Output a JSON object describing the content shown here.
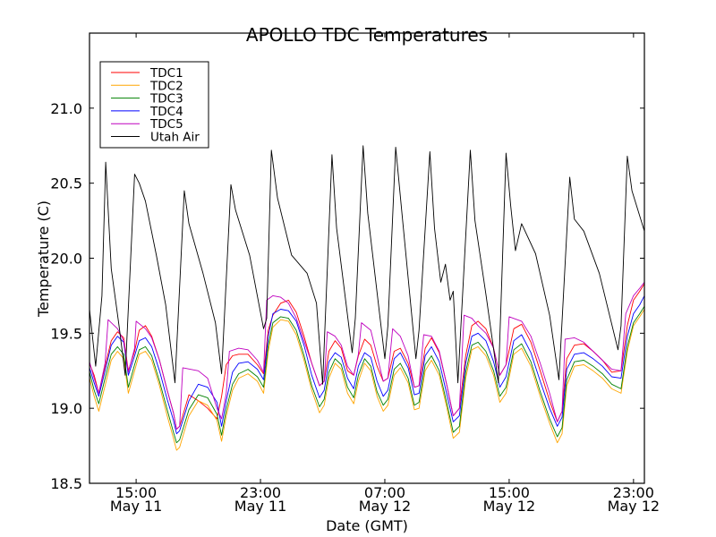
{
  "chart_data": {
    "type": "line",
    "title": "APOLLO TDC Temperatures",
    "xlabel": "Date (GMT)",
    "ylabel": "Temperature (C)",
    "x_units": "hours since 00:00 May 11 (GMT)",
    "xlim": [
      12.0,
      47.7
    ],
    "ylim": [
      18.5,
      21.5
    ],
    "grid": false,
    "legend_position": "top-left",
    "x_ticks": [
      {
        "value": 15,
        "label_time": "15:00",
        "label_date": "May 11"
      },
      {
        "value": 23,
        "label_time": "23:00",
        "label_date": "May 11"
      },
      {
        "value": 31,
        "label_time": "07:00",
        "label_date": "May 12"
      },
      {
        "value": 39,
        "label_time": "15:00",
        "label_date": "May 12"
      },
      {
        "value": 47,
        "label_time": "23:00",
        "label_date": "May 12"
      }
    ],
    "y_ticks": [
      {
        "value": 18.5,
        "label": "18.5"
      },
      {
        "value": 19.0,
        "label": "19.0"
      },
      {
        "value": 19.5,
        "label": "19.5"
      },
      {
        "value": 20.0,
        "label": "20.0"
      },
      {
        "value": 20.5,
        "label": "20.5"
      },
      {
        "value": 21.0,
        "label": "21.0"
      }
    ],
    "series": [
      {
        "name": "TDC1",
        "color": "#ff0000",
        "x": [
          12.0,
          12.3,
          12.6,
          13.0,
          13.4,
          13.8,
          14.2,
          14.5,
          14.9,
          15.2,
          15.6,
          16.0,
          16.5,
          17.0,
          17.4,
          17.6,
          17.8,
          18.4,
          19.0,
          19.6,
          20.2,
          20.5,
          20.8,
          21.2,
          21.6,
          22.2,
          22.8,
          23.2,
          23.5,
          23.8,
          24.3,
          24.8,
          25.3,
          25.8,
          26.3,
          26.8,
          27.1,
          27.4,
          27.8,
          28.2,
          28.6,
          29.0,
          29.3,
          29.7,
          30.1,
          30.5,
          30.9,
          31.2,
          31.6,
          32.0,
          32.5,
          32.9,
          33.2,
          33.6,
          34.0,
          34.5,
          35.0,
          35.4,
          35.8,
          36.2,
          36.6,
          37.0,
          37.5,
          38.0,
          38.4,
          38.8,
          39.3,
          39.8,
          40.4,
          41.0,
          41.6,
          42.1,
          42.4,
          42.7,
          43.2,
          43.8,
          44.4,
          45.0,
          45.6,
          46.2,
          46.6,
          47.0,
          47.4,
          47.7
        ],
        "y": [
          19.3,
          19.22,
          19.1,
          19.28,
          19.45,
          19.51,
          19.47,
          19.25,
          19.38,
          19.52,
          19.55,
          19.48,
          19.32,
          19.12,
          18.97,
          18.86,
          18.88,
          19.09,
          19.05,
          19.0,
          18.93,
          19.08,
          19.29,
          19.35,
          19.36,
          19.36,
          19.29,
          19.23,
          19.52,
          19.62,
          19.7,
          19.72,
          19.64,
          19.48,
          19.3,
          19.15,
          19.18,
          19.38,
          19.45,
          19.4,
          19.25,
          19.22,
          19.35,
          19.46,
          19.42,
          19.28,
          19.18,
          19.2,
          19.38,
          19.4,
          19.3,
          19.14,
          19.15,
          19.4,
          19.47,
          19.37,
          19.15,
          18.95,
          19.0,
          19.35,
          19.55,
          19.58,
          19.53,
          19.4,
          19.22,
          19.29,
          19.53,
          19.56,
          19.44,
          19.25,
          19.05,
          18.91,
          18.98,
          19.33,
          19.42,
          19.43,
          19.38,
          19.32,
          19.24,
          19.25,
          19.55,
          19.72,
          19.78,
          19.83
        ]
      },
      {
        "name": "TDC2",
        "color": "#ffa500",
        "x": [
          12.0,
          12.3,
          12.6,
          13.0,
          13.4,
          13.8,
          14.2,
          14.5,
          14.9,
          15.2,
          15.6,
          16.0,
          16.5,
          17.0,
          17.4,
          17.6,
          17.8,
          18.4,
          19.0,
          19.6,
          20.2,
          20.5,
          20.8,
          21.2,
          21.6,
          22.2,
          22.8,
          23.2,
          23.5,
          23.8,
          24.3,
          24.8,
          25.3,
          25.8,
          26.3,
          26.8,
          27.1,
          27.4,
          27.8,
          28.2,
          28.6,
          29.0,
          29.3,
          29.7,
          30.1,
          30.5,
          30.9,
          31.2,
          31.6,
          32.0,
          32.5,
          32.9,
          33.2,
          33.6,
          34.0,
          34.5,
          35.0,
          35.4,
          35.8,
          36.2,
          36.6,
          37.0,
          37.5,
          38.0,
          38.4,
          38.8,
          39.3,
          39.8,
          40.4,
          41.0,
          41.6,
          42.1,
          42.4,
          42.7,
          43.2,
          43.8,
          44.4,
          45.0,
          45.6,
          46.2,
          46.6,
          47.0,
          47.4,
          47.7
        ],
        "y": [
          19.2,
          19.08,
          18.98,
          19.15,
          19.32,
          19.38,
          19.33,
          19.1,
          19.25,
          19.36,
          19.38,
          19.32,
          19.15,
          18.95,
          18.8,
          18.72,
          18.74,
          18.95,
          19.05,
          19.02,
          18.92,
          18.78,
          18.95,
          19.12,
          19.2,
          19.23,
          19.18,
          19.1,
          19.38,
          19.54,
          19.59,
          19.58,
          19.49,
          19.32,
          19.12,
          18.97,
          19.02,
          19.2,
          19.3,
          19.26,
          19.1,
          19.03,
          19.18,
          19.3,
          19.25,
          19.08,
          18.98,
          19.02,
          19.22,
          19.27,
          19.17,
          18.99,
          19.0,
          19.25,
          19.32,
          19.22,
          19.0,
          18.8,
          18.84,
          19.2,
          19.39,
          19.41,
          19.35,
          19.22,
          19.04,
          19.1,
          19.36,
          19.4,
          19.28,
          19.08,
          18.9,
          18.77,
          18.83,
          19.15,
          19.28,
          19.29,
          19.25,
          19.2,
          19.13,
          19.1,
          19.38,
          19.55,
          19.61,
          19.66
        ]
      },
      {
        "name": "TDC3",
        "color": "#008000",
        "x": [
          12.0,
          12.3,
          12.6,
          13.0,
          13.4,
          13.8,
          14.2,
          14.5,
          14.9,
          15.2,
          15.6,
          16.0,
          16.5,
          17.0,
          17.4,
          17.6,
          17.8,
          18.4,
          19.0,
          19.6,
          20.2,
          20.5,
          20.8,
          21.2,
          21.6,
          22.2,
          22.8,
          23.2,
          23.5,
          23.8,
          24.3,
          24.8,
          25.3,
          25.8,
          26.3,
          26.8,
          27.1,
          27.4,
          27.8,
          28.2,
          28.6,
          29.0,
          29.3,
          29.7,
          30.1,
          30.5,
          30.9,
          31.2,
          31.6,
          32.0,
          32.5,
          32.9,
          33.2,
          33.6,
          34.0,
          34.5,
          35.0,
          35.4,
          35.8,
          36.2,
          36.6,
          37.0,
          37.5,
          38.0,
          38.4,
          38.8,
          39.3,
          39.8,
          40.4,
          41.0,
          41.6,
          42.1,
          42.4,
          42.7,
          43.2,
          43.8,
          44.4,
          45.0,
          45.6,
          46.2,
          46.6,
          47.0,
          47.4,
          47.7
        ],
        "y": [
          19.24,
          19.12,
          19.03,
          19.2,
          19.36,
          19.41,
          19.36,
          19.14,
          19.29,
          19.39,
          19.41,
          19.35,
          19.18,
          18.99,
          18.84,
          18.77,
          18.79,
          18.99,
          19.09,
          19.07,
          18.96,
          18.82,
          18.99,
          19.16,
          19.23,
          19.26,
          19.21,
          19.14,
          19.42,
          19.57,
          19.61,
          19.6,
          19.52,
          19.35,
          19.15,
          19.01,
          19.06,
          19.24,
          19.33,
          19.29,
          19.14,
          19.07,
          19.22,
          19.33,
          19.28,
          19.11,
          19.02,
          19.06,
          19.26,
          19.3,
          19.2,
          19.02,
          19.04,
          19.29,
          19.35,
          19.25,
          19.03,
          18.84,
          18.88,
          19.24,
          19.42,
          19.44,
          19.38,
          19.25,
          19.08,
          19.14,
          19.39,
          19.43,
          19.31,
          19.11,
          18.93,
          18.81,
          18.87,
          19.19,
          19.31,
          19.32,
          19.28,
          19.23,
          19.16,
          19.13,
          19.41,
          19.57,
          19.63,
          19.68
        ]
      },
      {
        "name": "TDC4",
        "color": "#0000ff",
        "x": [
          12.0,
          12.3,
          12.6,
          13.0,
          13.4,
          13.8,
          14.2,
          14.5,
          14.9,
          15.2,
          15.6,
          16.0,
          16.5,
          17.0,
          17.4,
          17.6,
          17.8,
          18.4,
          19.0,
          19.6,
          20.2,
          20.5,
          20.8,
          21.2,
          21.6,
          22.2,
          22.8,
          23.2,
          23.5,
          23.8,
          24.3,
          24.8,
          25.3,
          25.8,
          26.3,
          26.8,
          27.1,
          27.4,
          27.8,
          28.2,
          28.6,
          29.0,
          29.3,
          29.7,
          30.1,
          30.5,
          30.9,
          31.2,
          31.6,
          32.0,
          32.5,
          32.9,
          33.2,
          33.6,
          34.0,
          34.5,
          35.0,
          35.4,
          35.8,
          36.2,
          36.6,
          37.0,
          37.5,
          38.0,
          38.4,
          38.8,
          39.3,
          39.8,
          40.4,
          41.0,
          41.6,
          42.1,
          42.4,
          42.7,
          43.2,
          43.8,
          44.4,
          45.0,
          45.6,
          46.2,
          46.6,
          47.0,
          47.4,
          47.7
        ],
        "y": [
          19.27,
          19.17,
          19.08,
          19.25,
          19.42,
          19.48,
          19.44,
          19.22,
          19.35,
          19.45,
          19.47,
          19.41,
          19.25,
          19.06,
          18.92,
          18.83,
          18.85,
          19.05,
          19.16,
          19.14,
          19.04,
          18.88,
          19.05,
          19.24,
          19.3,
          19.31,
          19.26,
          19.19,
          19.48,
          19.63,
          19.66,
          19.65,
          19.58,
          19.42,
          19.22,
          19.07,
          19.12,
          19.31,
          19.37,
          19.34,
          19.2,
          19.13,
          19.28,
          19.37,
          19.34,
          19.18,
          19.08,
          19.12,
          19.33,
          19.37,
          19.27,
          19.09,
          19.1,
          19.35,
          19.41,
          19.31,
          19.09,
          18.91,
          18.95,
          19.3,
          19.48,
          19.5,
          19.45,
          19.31,
          19.14,
          19.21,
          19.45,
          19.49,
          19.37,
          19.18,
          19.0,
          18.88,
          18.94,
          19.26,
          19.36,
          19.37,
          19.33,
          19.28,
          19.21,
          19.2,
          19.48,
          19.63,
          19.69,
          19.75
        ]
      },
      {
        "name": "TDC5",
        "color": "#bf00bf",
        "x": [
          12.0,
          12.3,
          12.6,
          13.0,
          13.2,
          13.8,
          14.2,
          14.5,
          14.9,
          15.0,
          15.6,
          16.0,
          16.5,
          17.0,
          17.4,
          17.6,
          17.8,
          18.0,
          19.0,
          19.6,
          20.2,
          20.5,
          20.8,
          21.0,
          21.6,
          22.2,
          22.8,
          23.2,
          23.4,
          23.8,
          24.3,
          24.8,
          25.3,
          25.8,
          26.3,
          26.8,
          27.1,
          27.3,
          27.8,
          28.2,
          28.6,
          29.0,
          29.3,
          29.5,
          30.1,
          30.5,
          30.9,
          31.2,
          31.5,
          32.0,
          32.5,
          32.9,
          33.2,
          33.5,
          34.0,
          34.5,
          35.0,
          35.4,
          35.8,
          36.1,
          36.6,
          37.0,
          37.5,
          38.0,
          38.4,
          38.8,
          39.0,
          39.8,
          40.4,
          41.0,
          41.6,
          42.1,
          42.4,
          42.6,
          43.2,
          43.8,
          44.4,
          45.0,
          45.6,
          46.2,
          46.5,
          47.0,
          47.4,
          47.7
        ],
        "y": [
          19.31,
          19.2,
          19.1,
          19.3,
          19.59,
          19.53,
          19.45,
          19.24,
          19.4,
          19.58,
          19.53,
          19.47,
          19.32,
          19.12,
          18.97,
          18.86,
          18.88,
          19.27,
          19.25,
          19.2,
          19.0,
          18.93,
          19.1,
          19.38,
          19.4,
          19.39,
          19.32,
          19.24,
          19.72,
          19.75,
          19.74,
          19.7,
          19.6,
          19.45,
          19.3,
          19.15,
          19.18,
          19.51,
          19.48,
          19.42,
          19.28,
          19.22,
          19.36,
          19.57,
          19.52,
          19.35,
          19.18,
          19.2,
          19.53,
          19.48,
          19.35,
          19.14,
          19.15,
          19.49,
          19.48,
          19.38,
          19.15,
          18.95,
          19.0,
          19.62,
          19.6,
          19.55,
          19.5,
          19.4,
          19.22,
          19.29,
          19.61,
          19.58,
          19.48,
          19.3,
          19.1,
          18.91,
          18.98,
          19.46,
          19.47,
          19.44,
          19.38,
          19.32,
          19.26,
          19.25,
          19.63,
          19.75,
          19.8,
          19.84
        ]
      },
      {
        "name": "Utah Air",
        "color": "#000000",
        "x": [
          12.0,
          12.4,
          12.8,
          13.04,
          13.4,
          13.9,
          14.3,
          14.9,
          15.2,
          15.6,
          16.3,
          16.9,
          17.5,
          18.1,
          18.4,
          19.3,
          20.1,
          20.5,
          21.1,
          21.4,
          22.3,
          23.2,
          23.4,
          23.7,
          24.1,
          25.0,
          26.0,
          26.6,
          27.0,
          27.6,
          27.9,
          28.9,
          29.1,
          29.6,
          29.9,
          31.0,
          31.2,
          31.7,
          32.1,
          33.0,
          33.2,
          33.9,
          34.2,
          34.6,
          34.9,
          35.2,
          35.4,
          35.7,
          36.5,
          36.8,
          37.5,
          38.3,
          38.8,
          39.1,
          39.4,
          39.8,
          40.7,
          41.6,
          42.2,
          42.9,
          43.2,
          43.8,
          44.8,
          46.0,
          46.2,
          46.6,
          46.9,
          47.7
        ],
        "y": [
          19.66,
          19.28,
          19.75,
          20.64,
          19.93,
          19.55,
          19.22,
          20.56,
          20.5,
          20.38,
          20.02,
          19.69,
          19.17,
          20.45,
          20.23,
          19.9,
          19.57,
          19.23,
          20.49,
          20.32,
          20.02,
          19.53,
          19.6,
          20.72,
          20.4,
          20.02,
          19.9,
          19.7,
          19.16,
          20.69,
          20.2,
          19.37,
          19.6,
          20.75,
          20.3,
          19.33,
          19.55,
          20.74,
          20.3,
          19.33,
          19.52,
          20.71,
          20.2,
          19.84,
          19.96,
          19.72,
          19.78,
          19.17,
          20.72,
          20.25,
          19.76,
          19.17,
          20.7,
          20.35,
          20.05,
          20.23,
          20.03,
          19.62,
          19.19,
          20.54,
          20.26,
          20.18,
          19.9,
          19.39,
          19.55,
          20.68,
          20.45,
          20.18
        ]
      }
    ]
  }
}
